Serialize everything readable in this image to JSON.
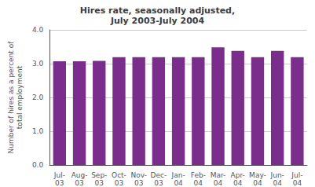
{
  "chart_data": {
    "type": "bar",
    "title": "Hires rate, seasonally adjusted,\nJuly 2003-July 2004",
    "categories": [
      "Jul-\n03",
      "Aug-\n03",
      "Sep-\n03",
      "Oct-\n03",
      "Nov-\n03",
      "Dec-\n03",
      "Jan-\n04",
      "Feb-\n04",
      "Mar-\n04",
      "Apr-\n04",
      "May-\n04",
      "Jun-\n04",
      "Jul-\n04"
    ],
    "values": [
      3.07,
      3.07,
      3.08,
      3.19,
      3.19,
      3.19,
      3.19,
      3.19,
      3.48,
      3.38,
      3.19,
      3.38,
      3.19
    ],
    "color": "#7B2D8B",
    "ylabel": "Number of hires as a percent of\ntotal employment",
    "ylim": [
      0.0,
      4.0
    ],
    "yticks": [
      {
        "value": 0.0,
        "label": "0.0"
      },
      {
        "value": 1.0,
        "label": "1.0"
      },
      {
        "value": 2.0,
        "label": "2.0"
      },
      {
        "value": 3.0,
        "label": "3.0"
      },
      {
        "value": 4.0,
        "label": "4.0"
      }
    ],
    "grid": true
  }
}
